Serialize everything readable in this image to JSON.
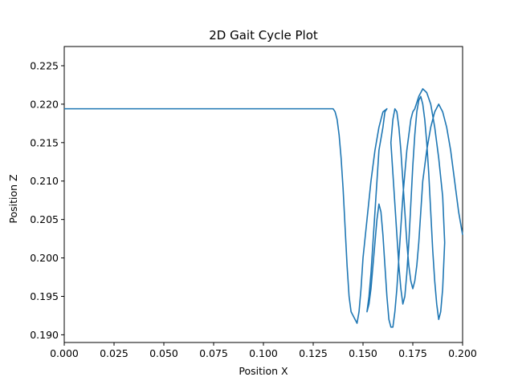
{
  "chart_data": {
    "type": "line",
    "title": "2D Gait Cycle Plot",
    "xlabel": "Position X",
    "ylabel": "Position Z",
    "xlim": [
      0.0,
      0.2
    ],
    "ylim": [
      0.189,
      0.2275
    ],
    "xticks": [
      "0.000",
      "0.025",
      "0.050",
      "0.075",
      "0.100",
      "0.125",
      "0.150",
      "0.175",
      "0.200"
    ],
    "yticks": [
      "0.190",
      "0.195",
      "0.200",
      "0.205",
      "0.210",
      "0.215",
      "0.220",
      "0.225"
    ],
    "grid": false,
    "legend": "none",
    "color": "#1f77b4",
    "series": [
      {
        "x": [
          0.0,
          0.135,
          0.136,
          0.137,
          0.138,
          0.139,
          0.14,
          0.141,
          0.142,
          0.143,
          0.144,
          0.146,
          0.147,
          0.148,
          0.149,
          0.15,
          0.152,
          0.154,
          0.156,
          0.158,
          0.16,
          0.162,
          0.161,
          0.16,
          0.158,
          0.157,
          0.156,
          0.155,
          0.154,
          0.153,
          0.152,
          0.153,
          0.154,
          0.155,
          0.156,
          0.157,
          0.158,
          0.159,
          0.16,
          0.161,
          0.162,
          0.163,
          0.164,
          0.165,
          0.166,
          0.167,
          0.168,
          0.169,
          0.17,
          0.171,
          0.172,
          0.173,
          0.174,
          0.175,
          0.176,
          0.178,
          0.18,
          0.182,
          0.184,
          0.186,
          0.188,
          0.19,
          0.191,
          0.19,
          0.189,
          0.188,
          0.187,
          0.186,
          0.185,
          0.184,
          0.183,
          0.182,
          0.181,
          0.18,
          0.179,
          0.178,
          0.177,
          0.176,
          0.175,
          0.174,
          0.173,
          0.172,
          0.171,
          0.17,
          0.169,
          0.168,
          0.167,
          0.166,
          0.165,
          0.164,
          0.165,
          0.166,
          0.167,
          0.168,
          0.169,
          0.17,
          0.171,
          0.172,
          0.173,
          0.174,
          0.175,
          0.176,
          0.177,
          0.178,
          0.179,
          0.18,
          0.182,
          0.184,
          0.186,
          0.188,
          0.19,
          0.192,
          0.194,
          0.196,
          0.198,
          0.2
        ],
        "y": [
          0.2194,
          0.2194,
          0.219,
          0.218,
          0.216,
          0.213,
          0.209,
          0.204,
          0.199,
          0.195,
          0.193,
          0.192,
          0.1915,
          0.193,
          0.196,
          0.2,
          0.205,
          0.21,
          0.214,
          0.217,
          0.219,
          0.2194,
          0.219,
          0.217,
          0.214,
          0.21,
          0.206,
          0.202,
          0.198,
          0.195,
          0.193,
          0.194,
          0.196,
          0.199,
          0.202,
          0.205,
          0.207,
          0.206,
          0.203,
          0.199,
          0.195,
          0.192,
          0.191,
          0.191,
          0.193,
          0.196,
          0.2,
          0.204,
          0.208,
          0.211,
          0.214,
          0.216,
          0.218,
          0.219,
          0.2194,
          0.221,
          0.222,
          0.2215,
          0.22,
          0.217,
          0.213,
          0.208,
          0.202,
          0.196,
          0.193,
          0.192,
          0.194,
          0.197,
          0.201,
          0.206,
          0.211,
          0.215,
          0.218,
          0.22,
          0.221,
          0.2205,
          0.219,
          0.216,
          0.212,
          0.207,
          0.202,
          0.198,
          0.195,
          0.194,
          0.196,
          0.199,
          0.203,
          0.207,
          0.211,
          0.215,
          0.218,
          0.2194,
          0.219,
          0.217,
          0.214,
          0.21,
          0.206,
          0.202,
          0.199,
          0.197,
          0.196,
          0.197,
          0.199,
          0.202,
          0.206,
          0.21,
          0.214,
          0.217,
          0.219,
          0.22,
          0.219,
          0.217,
          0.214,
          0.21,
          0.206,
          0.203
        ]
      }
    ]
  }
}
